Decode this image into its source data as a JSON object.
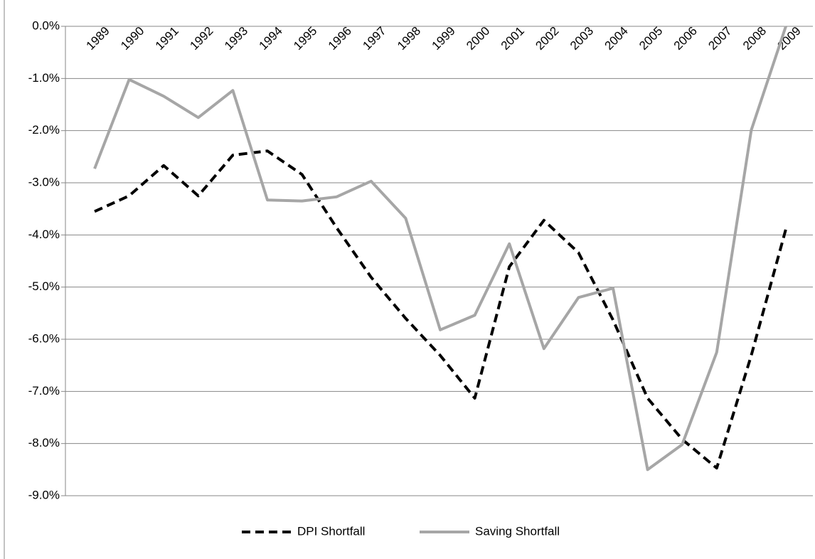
{
  "chart_data": {
    "type": "line",
    "categories": [
      "1989",
      "1990",
      "1991",
      "1992",
      "1993",
      "1994",
      "1995",
      "1996",
      "1997",
      "1998",
      "1999",
      "2000",
      "2001",
      "2002",
      "2003",
      "2004",
      "2005",
      "2006",
      "2007",
      "2008",
      "2009"
    ],
    "series": [
      {
        "name": "DPI Shortfall",
        "color": "#000000",
        "dashed": true,
        "values": [
          -3.55,
          -3.25,
          -2.67,
          -3.25,
          -2.47,
          -2.39,
          -2.84,
          -3.86,
          -4.81,
          -5.6,
          -6.31,
          -7.13,
          -4.61,
          -3.72,
          -4.34,
          -5.63,
          -7.13,
          -7.92,
          -8.47,
          -6.31,
          -3.89
        ]
      },
      {
        "name": "Saving Shortfall",
        "color": "#a6a6a6",
        "dashed": false,
        "values": [
          -2.73,
          -1.02,
          -1.34,
          -1.75,
          -1.23,
          -3.33,
          -3.35,
          -3.27,
          -2.97,
          -3.68,
          -5.82,
          -5.54,
          -4.17,
          -6.18,
          -5.2,
          -5.02,
          -8.5,
          -8.02,
          -6.25,
          -1.99,
          0.0
        ]
      }
    ],
    "ylim": [
      -9,
      0
    ],
    "yticks": [
      {
        "value": 0,
        "label": "0.0%"
      },
      {
        "value": -1,
        "label": "-1.0%"
      },
      {
        "value": -2,
        "label": "-2.0%"
      },
      {
        "value": -3,
        "label": "-3.0%"
      },
      {
        "value": -4,
        "label": "-4.0%"
      },
      {
        "value": -5,
        "label": "-5.0%"
      },
      {
        "value": -6,
        "label": "-6.0%"
      },
      {
        "value": -7,
        "label": "-7.0%"
      },
      {
        "value": -8,
        "label": "-8.0%"
      },
      {
        "value": -9,
        "label": "-9.0%"
      }
    ],
    "grid": true,
    "legend": "bottom"
  }
}
